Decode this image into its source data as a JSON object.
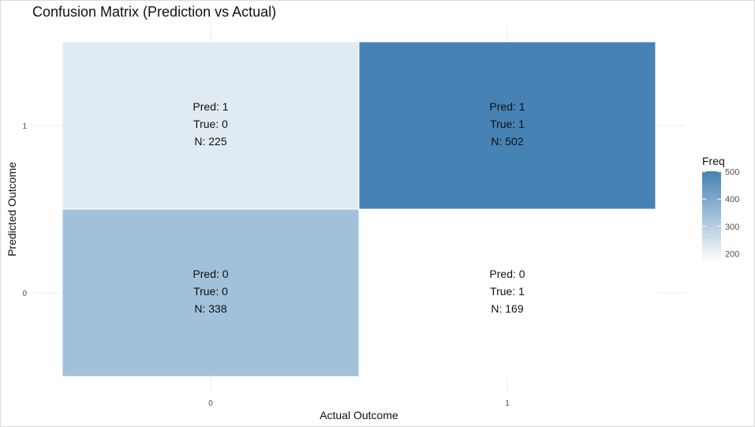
{
  "chart_data": {
    "type": "heatmap",
    "title": "Confusion Matrix (Prediction vs Actual)",
    "xlabel": "Actual Outcome",
    "ylabel": "Predicted Outcome",
    "x_categories": [
      "0",
      "1"
    ],
    "y_categories": [
      "0",
      "1"
    ],
    "cells": [
      {
        "actual": "0",
        "predicted": "1",
        "freq": 225,
        "label_lines": [
          "Pred: 1",
          "True: 0",
          "N: 225"
        ]
      },
      {
        "actual": "1",
        "predicted": "1",
        "freq": 502,
        "label_lines": [
          "Pred: 1",
          "True: 1",
          "N: 502"
        ]
      },
      {
        "actual": "0",
        "predicted": "0",
        "freq": 338,
        "label_lines": [
          "Pred: 0",
          "True: 0",
          "N: 338"
        ]
      },
      {
        "actual": "1",
        "predicted": "0",
        "freq": 169,
        "label_lines": [
          "Pred: 0",
          "True: 1",
          "N: 169"
        ]
      }
    ],
    "legend": {
      "title": "Freq",
      "ticks": [
        200,
        300,
        400,
        500
      ],
      "range": [
        169,
        502
      ],
      "placement": "right"
    },
    "color_low": "#ffffff",
    "color_high": "#4682b4",
    "gridlines": true
  }
}
